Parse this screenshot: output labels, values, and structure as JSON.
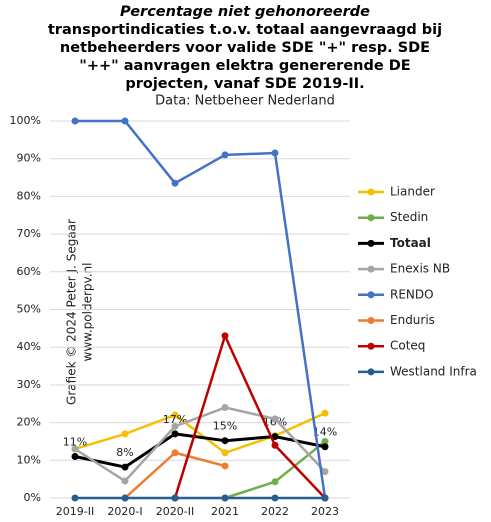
{
  "chart_data": {
    "type": "line",
    "title": [
      "Percentage niet gehonoreerde",
      "transportindicaties  t.o.v. totaal aangevraagd bij",
      "netbeheerders voor valide SDE \"+\" resp. SDE",
      "\"++\" aanvragen elektra genererende DE",
      "projecten, vanaf SDE 2019-II."
    ],
    "subtitle": "Data: Netbeheer Nederland",
    "annotations": [
      "Grafiek © 2024 Peter J. Segaar",
      "www.polderpv.nl"
    ],
    "categories": [
      "2019-II",
      "2020-I",
      "2020-II",
      "2021",
      "2022",
      "2023"
    ],
    "ylim": [
      0,
      100
    ],
    "yticks": [
      {
        "value": 0,
        "label": "0%"
      },
      {
        "value": 10,
        "label": "10%"
      },
      {
        "value": 20,
        "label": "20%"
      },
      {
        "value": 30,
        "label": "30%"
      },
      {
        "value": 40,
        "label": "40%"
      },
      {
        "value": 50,
        "label": "50%"
      },
      {
        "value": 60,
        "label": "60%"
      },
      {
        "value": 70,
        "label": "70%"
      },
      {
        "value": 80,
        "label": "80%"
      },
      {
        "value": 90,
        "label": "90%"
      },
      {
        "value": 100,
        "label": "100%"
      }
    ],
    "series": [
      {
        "name": "Liander",
        "color": "#f5c000",
        "values": [
          13,
          17,
          22,
          12,
          16.5,
          22.5
        ]
      },
      {
        "name": "Stedin",
        "color": "#70ad47",
        "values": [
          null,
          null,
          null,
          0,
          4.3,
          15
        ]
      },
      {
        "name": "Totaal",
        "color": "#000000",
        "values": [
          11,
          8.2,
          17,
          15.2,
          16.3,
          13.6
        ],
        "value_labels": [
          "11%",
          "8%",
          "17%",
          "15%",
          "16%",
          "14%"
        ]
      },
      {
        "name": "Enexis NB",
        "color": "#a5a5a5",
        "values": [
          13,
          4.5,
          19,
          24,
          21,
          7
        ]
      },
      {
        "name": "RENDO",
        "color": "#4472c4",
        "values": [
          100,
          100,
          83.5,
          91,
          91.5,
          0
        ]
      },
      {
        "name": "Enduris",
        "color": "#ed7d31",
        "values": [
          null,
          0,
          12,
          8.5,
          null,
          null
        ]
      },
      {
        "name": "Coteq",
        "color": "#c00000",
        "values": [
          null,
          null,
          0,
          43,
          14,
          0
        ]
      },
      {
        "name": "Westland Infra",
        "color": "#255e91",
        "values": [
          0,
          0,
          0,
          0,
          0,
          0
        ]
      }
    ]
  }
}
